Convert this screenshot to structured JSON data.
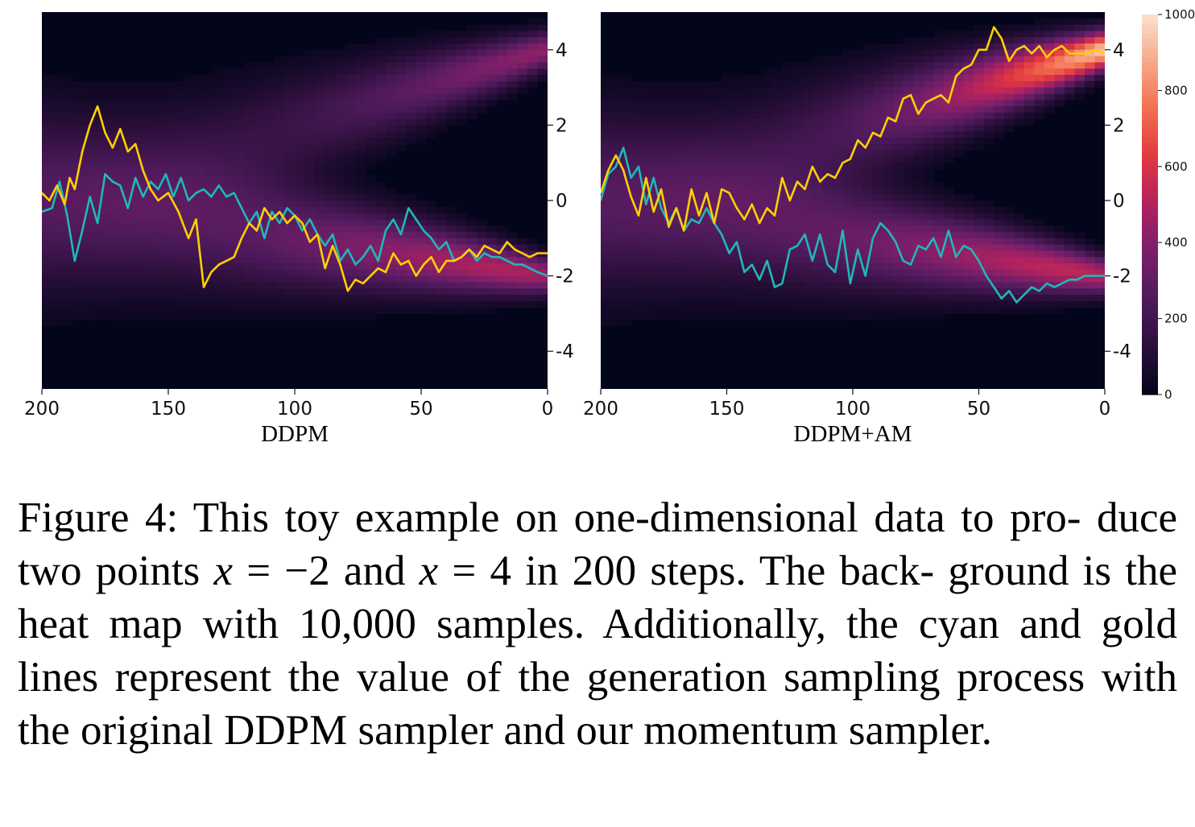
{
  "figure": {
    "colormap": [
      "#03051a",
      "#2b0f3a",
      "#4e1a5c",
      "#7a1f6a",
      "#b0225e",
      "#e2373f",
      "#f26e4f",
      "#f7a88a",
      "#fae0d1"
    ],
    "colors": {
      "cyan_line": "#1fb8b8",
      "gold_line": "#ffd000",
      "background_dark": "#03051a"
    },
    "colorbar": {
      "ticks": [
        {
          "value": 1000,
          "label": "1000"
        },
        {
          "value": 800,
          "label": "800"
        },
        {
          "value": 600,
          "label": "600"
        },
        {
          "value": 400,
          "label": "400"
        },
        {
          "value": 200,
          "label": "200"
        },
        {
          "value": 0,
          "label": "0"
        }
      ],
      "range": [
        0,
        1000
      ]
    }
  },
  "chart_data": [
    {
      "type": "heatmap",
      "xlabel": "DDPM",
      "xlim": [
        200,
        0
      ],
      "ylim": [
        -5,
        5
      ],
      "x_ticks": [
        {
          "value": 200,
          "label": "200"
        },
        {
          "value": 150,
          "label": "150"
        },
        {
          "value": 100,
          "label": "100"
        },
        {
          "value": 50,
          "label": "50"
        },
        {
          "value": 0,
          "label": "0"
        }
      ],
      "y_ticks": [
        {
          "value": 4,
          "label": "4"
        },
        {
          "value": 2,
          "label": "2"
        },
        {
          "value": 0,
          "label": "0"
        },
        {
          "value": -2,
          "label": "-2"
        },
        {
          "value": -4,
          "label": "-4"
        }
      ],
      "y_axis_side": "right",
      "density": {
        "modes": [
          {
            "name": "top",
            "target": 4,
            "weight": 0.33,
            "peak_intensity": 0.42
          },
          {
            "name": "bottom",
            "target": -2,
            "weight": 0.67,
            "peak_intensity": 0.45
          }
        ],
        "start_intensity": 0.48
      },
      "series": [
        {
          "color_key": "cyan_line",
          "x": [
            200,
            196,
            193,
            190,
            187,
            184,
            181,
            178,
            175,
            172,
            169,
            166,
            163,
            160,
            157,
            154,
            151,
            148,
            145,
            142,
            139,
            136,
            133,
            130,
            127,
            124,
            121,
            118,
            115,
            112,
            109,
            106,
            103,
            100,
            97,
            94,
            91,
            88,
            85,
            82,
            79,
            76,
            73,
            70,
            67,
            64,
            61,
            58,
            55,
            52,
            49,
            46,
            43,
            40,
            37,
            34,
            31,
            28,
            25,
            22,
            19,
            16,
            13,
            10,
            7,
            4,
            0
          ],
          "y": [
            -0.3,
            -0.2,
            0.5,
            -0.4,
            -1.6,
            -0.8,
            0.1,
            -0.6,
            0.7,
            0.5,
            0.4,
            -0.2,
            0.6,
            0.1,
            0.5,
            0.3,
            0.7,
            0.1,
            0.6,
            0.0,
            0.2,
            0.3,
            0.1,
            0.4,
            0.1,
            0.2,
            -0.2,
            -0.6,
            -0.3,
            -1.0,
            -0.3,
            -0.6,
            -0.2,
            -0.4,
            -0.8,
            -0.5,
            -0.9,
            -1.2,
            -0.9,
            -1.6,
            -1.3,
            -1.7,
            -1.5,
            -1.2,
            -1.6,
            -0.8,
            -0.5,
            -0.9,
            -0.2,
            -0.5,
            -0.8,
            -1.0,
            -1.3,
            -1.1,
            -1.6,
            -1.5,
            -1.3,
            -1.6,
            -1.4,
            -1.5,
            -1.5,
            -1.6,
            -1.7,
            -1.7,
            -1.8,
            -1.9,
            -2.0
          ]
        },
        {
          "color_key": "gold_line",
          "x": [
            200,
            197,
            194,
            191,
            189,
            187,
            184,
            181,
            178,
            175,
            172,
            169,
            166,
            163,
            160,
            157,
            154,
            150,
            146,
            142,
            139,
            136,
            133,
            130,
            127,
            124,
            121,
            118,
            115,
            112,
            109,
            106,
            103,
            100,
            97,
            94,
            91,
            88,
            85,
            82,
            79,
            76,
            73,
            70,
            67,
            64,
            61,
            58,
            55,
            52,
            49,
            46,
            43,
            40,
            37,
            34,
            31,
            28,
            25,
            22,
            19,
            16,
            13,
            10,
            7,
            4,
            0
          ],
          "y": [
            0.2,
            0.0,
            0.4,
            -0.1,
            0.6,
            0.3,
            1.3,
            2.0,
            2.5,
            1.8,
            1.4,
            1.9,
            1.3,
            1.5,
            0.8,
            0.3,
            0.0,
            0.2,
            -0.3,
            -1.0,
            -0.5,
            -2.3,
            -1.9,
            -1.7,
            -1.6,
            -1.5,
            -1.0,
            -0.6,
            -0.8,
            -0.2,
            -0.5,
            -0.3,
            -0.6,
            -0.4,
            -0.6,
            -1.1,
            -0.9,
            -1.8,
            -1.2,
            -1.7,
            -2.4,
            -2.1,
            -2.2,
            -2.0,
            -1.8,
            -1.9,
            -1.4,
            -1.7,
            -1.6,
            -2.0,
            -1.7,
            -1.5,
            -1.9,
            -1.6,
            -1.6,
            -1.5,
            -1.3,
            -1.5,
            -1.2,
            -1.3,
            -1.4,
            -1.1,
            -1.3,
            -1.4,
            -1.5,
            -1.4,
            -1.4
          ]
        }
      ]
    },
    {
      "type": "heatmap",
      "xlabel": "DDPM+AM",
      "xlim": [
        200,
        0
      ],
      "ylim": [
        -5,
        5
      ],
      "x_ticks": [
        {
          "value": 200,
          "label": "200"
        },
        {
          "value": 150,
          "label": "150"
        },
        {
          "value": 100,
          "label": "100"
        },
        {
          "value": 50,
          "label": "50"
        },
        {
          "value": 0,
          "label": "0"
        }
      ],
      "y_ticks": [
        {
          "value": 4,
          "label": "4"
        },
        {
          "value": 2,
          "label": "2"
        },
        {
          "value": 0,
          "label": "0"
        },
        {
          "value": -2,
          "label": "-2"
        },
        {
          "value": -4,
          "label": "-4"
        }
      ],
      "y_axis_side": "right",
      "density": {
        "modes": [
          {
            "name": "top",
            "target": 4,
            "weight": 0.33,
            "peak_intensity": 0.95
          },
          {
            "name": "bottom",
            "target": -2,
            "weight": 0.67,
            "peak_intensity": 0.5
          }
        ],
        "start_intensity": 0.48
      },
      "series": [
        {
          "color_key": "cyan_line",
          "x": [
            200,
            197,
            194,
            191,
            188,
            185,
            182,
            179,
            176,
            173,
            170,
            167,
            164,
            161,
            158,
            155,
            152,
            149,
            146,
            143,
            140,
            137,
            134,
            131,
            128,
            125,
            122,
            119,
            116,
            113,
            110,
            107,
            104,
            101,
            98,
            95,
            92,
            89,
            86,
            83,
            80,
            77,
            74,
            71,
            68,
            65,
            62,
            59,
            56,
            53,
            50,
            47,
            44,
            41,
            38,
            35,
            32,
            29,
            26,
            23,
            20,
            17,
            14,
            11,
            8,
            4,
            0
          ],
          "y": [
            0.0,
            0.7,
            0.9,
            1.4,
            0.6,
            0.9,
            -0.1,
            0.6,
            -0.2,
            -0.6,
            -0.2,
            -0.8,
            -0.5,
            -0.6,
            -0.2,
            -0.6,
            -0.9,
            -1.4,
            -1.1,
            -1.9,
            -1.7,
            -2.1,
            -1.6,
            -2.3,
            -2.2,
            -1.3,
            -1.2,
            -0.9,
            -1.6,
            -0.9,
            -1.7,
            -1.9,
            -0.8,
            -2.2,
            -1.3,
            -2.0,
            -1.0,
            -0.6,
            -0.8,
            -1.1,
            -1.6,
            -1.7,
            -1.2,
            -1.3,
            -1.0,
            -1.5,
            -0.8,
            -1.5,
            -1.2,
            -1.3,
            -1.6,
            -2.0,
            -2.3,
            -2.6,
            -2.4,
            -2.7,
            -2.5,
            -2.3,
            -2.4,
            -2.2,
            -2.3,
            -2.2,
            -2.1,
            -2.1,
            -2.0,
            -2.0,
            -2.0
          ]
        },
        {
          "color_key": "gold_line",
          "x": [
            200,
            197,
            194,
            191,
            188,
            185,
            182,
            179,
            176,
            173,
            170,
            167,
            164,
            161,
            158,
            155,
            152,
            149,
            146,
            143,
            140,
            137,
            134,
            131,
            128,
            125,
            122,
            119,
            116,
            113,
            110,
            107,
            104,
            101,
            98,
            95,
            92,
            89,
            86,
            83,
            80,
            77,
            74,
            71,
            68,
            65,
            62,
            59,
            56,
            53,
            50,
            47,
            44,
            41,
            38,
            35,
            32,
            29,
            26,
            23,
            20,
            17,
            14,
            11,
            8,
            4,
            0
          ],
          "y": [
            0.2,
            0.8,
            1.2,
            0.8,
            0.1,
            -0.4,
            0.6,
            -0.3,
            0.3,
            -0.7,
            -0.2,
            -0.8,
            0.3,
            -0.4,
            0.2,
            -0.6,
            0.3,
            0.2,
            -0.2,
            -0.5,
            -0.1,
            -0.6,
            -0.2,
            -0.4,
            0.6,
            0.0,
            0.5,
            0.3,
            0.9,
            0.5,
            0.7,
            0.6,
            1.0,
            1.1,
            1.6,
            1.4,
            1.8,
            1.7,
            2.2,
            2.1,
            2.7,
            2.8,
            2.3,
            2.6,
            2.7,
            2.8,
            2.6,
            3.3,
            3.5,
            3.6,
            4.0,
            4.0,
            4.6,
            4.3,
            3.7,
            4.0,
            4.1,
            3.9,
            4.1,
            3.8,
            4.0,
            4.1,
            3.9,
            3.9,
            3.9,
            4.0,
            3.9
          ]
        }
      ]
    }
  ],
  "caption": {
    "part1": "Figure 4: This toy example on one-dimensional data to pro- duce two points ",
    "var1": "x",
    "eq1": " = −2 and ",
    "var2": "x",
    "eq2": " = 4 in 200 steps. The back- ground is the heat map with 10,000 samples. Additionally, the cyan and gold lines represent the value of the generation sampling process with the original DDPM sampler and our momentum sampler."
  }
}
